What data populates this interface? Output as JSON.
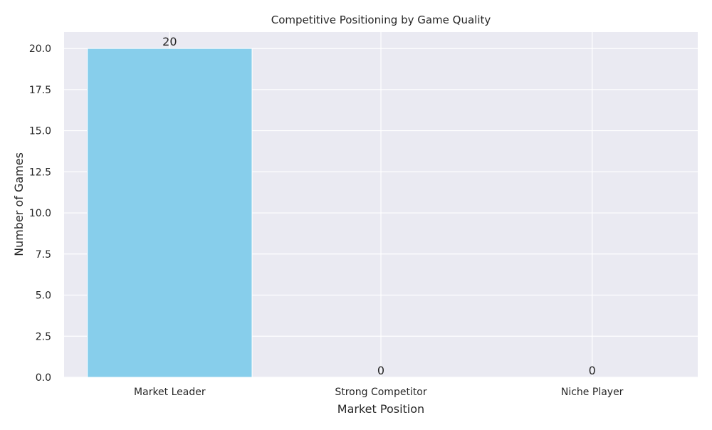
{
  "chart_data": {
    "type": "bar",
    "title": "Competitive Positioning by Game Quality",
    "xlabel": "Market Position",
    "ylabel": "Number of Games",
    "categories": [
      "Market Leader",
      "Strong Competitor",
      "Niche Player"
    ],
    "values": [
      20,
      0,
      0
    ],
    "data_labels": [
      "20",
      "0",
      "0"
    ],
    "ylim": [
      0,
      21
    ],
    "yticks": [
      0.0,
      2.5,
      5.0,
      7.5,
      10.0,
      12.5,
      15.0,
      17.5,
      20.0
    ],
    "ytick_labels": [
      "0.0",
      "2.5",
      "5.0",
      "7.5",
      "10.0",
      "12.5",
      "15.0",
      "17.5",
      "20.0"
    ],
    "grid": true,
    "bar_color": "#87CEEB",
    "plot_background": "#EAEAF2",
    "grid_color": "#FFFFFF",
    "text_color": "#262626"
  }
}
